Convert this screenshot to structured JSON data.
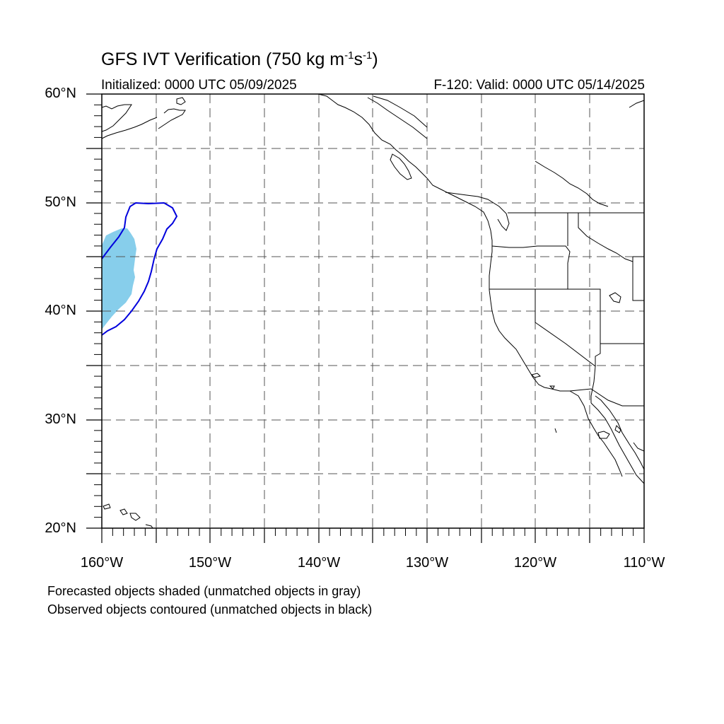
{
  "title": {
    "main": "GFS IVT Verification (750 kg m",
    "exp1": "-1",
    "mid": "s",
    "exp2": "-1",
    "end": ")"
  },
  "subtitle_left": "Initialized: 0000 UTC 05/09/2025",
  "subtitle_right": "F-120: Valid: 0000 UTC 05/14/2025",
  "lat_labels": [
    "60°N",
    "50°N",
    "40°N",
    "30°N",
    "20°N"
  ],
  "lon_labels": [
    "160°W",
    "150°W",
    "140°W",
    "130°W",
    "120°W",
    "110°W"
  ],
  "notes": [
    "Forecasted objects shaded (unmatched objects in gray)",
    "Observed objects contoured (unmatched objects in black)"
  ],
  "map_extent": {
    "lon_min": -160,
    "lon_max": -110,
    "lat_min": 20,
    "lat_max": 60
  },
  "colors": {
    "forecast_fill": "#87ceeb",
    "observed_contour": "#0000dd",
    "grid": "#555555",
    "coast": "#000000"
  }
}
